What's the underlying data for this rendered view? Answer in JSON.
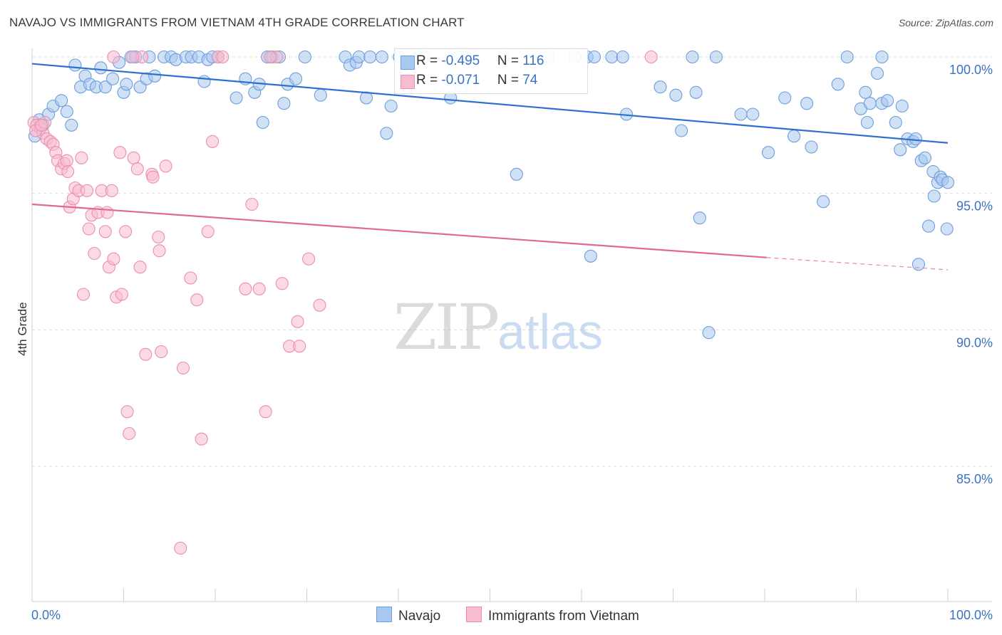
{
  "title": "NAVAJO VS IMMIGRANTS FROM VIETNAM 4TH GRADE CORRELATION CHART",
  "source": "Source: ZipAtlas.com",
  "watermark": {
    "zip": "ZIP",
    "atlas": "atlas"
  },
  "stats": [
    {
      "r_label": "R = ",
      "r_value": "-0.495",
      "n_label": "N = ",
      "n_value": "116",
      "color": "#a9c8ef",
      "border": "#6c9fdd"
    },
    {
      "r_label": "R = ",
      "r_value": "-0.071",
      "n_label": "N = ",
      "n_value": "74",
      "color": "#f7bcd0",
      "border": "#ea8fb0"
    }
  ],
  "legend": [
    {
      "label": "Navajo",
      "color": "#a9c8ef",
      "border": "#6c9fdd"
    },
    {
      "label": "Immigrants from Vietnam",
      "color": "#f7bcd0",
      "border": "#ea8fb0"
    }
  ],
  "chart_data": {
    "type": "scatter",
    "title": "NAVAJO VS IMMIGRANTS FROM VIETNAM 4TH GRADE CORRELATION CHART",
    "xlabel": "",
    "ylabel": "4th Grade",
    "xlim": [
      0,
      100
    ],
    "ylim": [
      80.5,
      100.8
    ],
    "x_tick_labels": [
      {
        "value": 0,
        "label": "0.0%"
      },
      {
        "value": 100,
        "label": "100.0%"
      }
    ],
    "y_tick_labels": [
      {
        "value": 100,
        "label": "100.0%"
      },
      {
        "value": 95,
        "label": "95.0%"
      },
      {
        "value": 90,
        "label": "90.0%"
      },
      {
        "value": 85,
        "label": "85.0%"
      }
    ],
    "grid": true,
    "legend_position": "bottom",
    "series": [
      {
        "name": "Navajo",
        "color": "#6c9fdd",
        "fill": "#a9c8ef",
        "trend": {
          "x": [
            0,
            100
          ],
          "y": [
            99.75,
            96.85
          ],
          "color": "#2f6fcf"
        },
        "points": [
          [
            0.3,
            97.1
          ],
          [
            0.8,
            97.7
          ],
          [
            1.2,
            97.5
          ],
          [
            1.8,
            97.9
          ],
          [
            2.3,
            98.2
          ],
          [
            3.2,
            98.4
          ],
          [
            3.8,
            98.0
          ],
          [
            4.3,
            97.5
          ],
          [
            4.7,
            99.7
          ],
          [
            5.3,
            98.9
          ],
          [
            5.8,
            99.3
          ],
          [
            6.3,
            99.0
          ],
          [
            7.0,
            98.9
          ],
          [
            7.5,
            99.6
          ],
          [
            8.0,
            98.9
          ],
          [
            8.8,
            99.2
          ],
          [
            9.5,
            99.8
          ],
          [
            10.0,
            98.7
          ],
          [
            10.3,
            99.0
          ],
          [
            10.8,
            100.0
          ],
          [
            11.3,
            100.0
          ],
          [
            11.8,
            98.9
          ],
          [
            12.5,
            99.2
          ],
          [
            12.8,
            100.0
          ],
          [
            13.4,
            99.3
          ],
          [
            14.4,
            100.0
          ],
          [
            15.2,
            100.0
          ],
          [
            15.7,
            99.9
          ],
          [
            16.8,
            100.0
          ],
          [
            17.4,
            100.0
          ],
          [
            18.2,
            100.0
          ],
          [
            18.8,
            99.1
          ],
          [
            19.2,
            99.9
          ],
          [
            19.7,
            100.0
          ],
          [
            20.3,
            100.0
          ],
          [
            22.3,
            98.5
          ],
          [
            23.3,
            99.2
          ],
          [
            24.3,
            98.7
          ],
          [
            24.8,
            99.0
          ],
          [
            25.2,
            97.6
          ],
          [
            25.7,
            100.0
          ],
          [
            26.2,
            100.0
          ],
          [
            27.0,
            100.0
          ],
          [
            27.5,
            98.3
          ],
          [
            27.9,
            99.0
          ],
          [
            28.8,
            99.2
          ],
          [
            29.8,
            100.0
          ],
          [
            31.5,
            98.6
          ],
          [
            34.2,
            100.0
          ],
          [
            34.7,
            99.7
          ],
          [
            35.4,
            99.8
          ],
          [
            35.7,
            100.0
          ],
          [
            36.5,
            98.5
          ],
          [
            36.9,
            100.0
          ],
          [
            38.2,
            100.0
          ],
          [
            38.7,
            97.2
          ],
          [
            39.2,
            98.2
          ],
          [
            40.1,
            100.0
          ],
          [
            42.8,
            100.0
          ],
          [
            45.7,
            98.5
          ],
          [
            46.5,
            100.0
          ],
          [
            46.9,
            98.9
          ],
          [
            47.4,
            100.0
          ],
          [
            51.4,
            100.0
          ],
          [
            52.9,
            95.7
          ],
          [
            56.4,
            100.0
          ],
          [
            59.3,
            100.0
          ],
          [
            60.6,
            100.0
          ],
          [
            61.0,
            92.7
          ],
          [
            61.4,
            100.0
          ],
          [
            63.3,
            100.0
          ],
          [
            64.5,
            100.0
          ],
          [
            64.9,
            97.9
          ],
          [
            68.6,
            98.9
          ],
          [
            70.3,
            98.6
          ],
          [
            70.9,
            97.3
          ],
          [
            72.1,
            100.0
          ],
          [
            72.5,
            98.7
          ],
          [
            72.9,
            94.1
          ],
          [
            74.7,
            100.0
          ],
          [
            73.9,
            89.9
          ],
          [
            77.4,
            97.9
          ],
          [
            78.7,
            97.9
          ],
          [
            80.4,
            96.5
          ],
          [
            82.2,
            98.5
          ],
          [
            83.2,
            97.1
          ],
          [
            84.6,
            98.3
          ],
          [
            85.1,
            96.7
          ],
          [
            86.4,
            94.7
          ],
          [
            89.0,
            100.0
          ],
          [
            90.5,
            98.1
          ],
          [
            91.0,
            98.7
          ],
          [
            91.2,
            97.6
          ],
          [
            91.5,
            98.3
          ],
          [
            92.3,
            99.4
          ],
          [
            92.8,
            98.3
          ],
          [
            93.4,
            98.4
          ],
          [
            92.8,
            100.0
          ],
          [
            94.3,
            97.6
          ],
          [
            94.8,
            96.6
          ],
          [
            95.0,
            98.2
          ],
          [
            95.6,
            97.0
          ],
          [
            96.2,
            96.9
          ],
          [
            96.5,
            97.0
          ],
          [
            96.8,
            92.4
          ],
          [
            97.1,
            96.2
          ],
          [
            97.5,
            96.3
          ],
          [
            97.9,
            93.8
          ],
          [
            98.4,
            95.8
          ],
          [
            98.5,
            94.9
          ],
          [
            98.9,
            95.4
          ],
          [
            99.2,
            95.6
          ],
          [
            99.4,
            95.5
          ],
          [
            99.9,
            93.7
          ],
          [
            100.0,
            95.4
          ],
          [
            88.0,
            99.0
          ]
        ]
      },
      {
        "name": "Immigrants from Vietnam",
        "color": "#ea8fb0",
        "fill": "#f7bcd0",
        "trend": {
          "x": [
            0,
            80.2
          ],
          "y": [
            94.6,
            92.65
          ],
          "color": "#e06a94"
        },
        "trend_dashed": {
          "x": [
            80.2,
            100
          ],
          "y": [
            92.65,
            92.2
          ]
        },
        "points": [
          [
            0.2,
            97.6
          ],
          [
            0.5,
            97.5
          ],
          [
            0.9,
            97.4
          ],
          [
            1.2,
            97.2
          ],
          [
            1.4,
            97.6
          ],
          [
            1.6,
            97.0
          ],
          [
            2.0,
            96.9
          ],
          [
            2.3,
            96.8
          ],
          [
            2.6,
            96.5
          ],
          [
            2.8,
            96.2
          ],
          [
            3.2,
            95.9
          ],
          [
            3.5,
            96.1
          ],
          [
            3.8,
            96.2
          ],
          [
            4.1,
            94.5
          ],
          [
            4.5,
            94.8
          ],
          [
            4.7,
            95.2
          ],
          [
            5.1,
            95.1
          ],
          [
            5.4,
            96.3
          ],
          [
            5.6,
            91.3
          ],
          [
            6.0,
            95.1
          ],
          [
            6.2,
            93.7
          ],
          [
            6.5,
            94.2
          ],
          [
            6.8,
            92.8
          ],
          [
            7.2,
            94.3
          ],
          [
            7.6,
            95.1
          ],
          [
            8.0,
            93.6
          ],
          [
            8.2,
            94.3
          ],
          [
            8.4,
            92.3
          ],
          [
            8.7,
            95.1
          ],
          [
            8.9,
            92.6
          ],
          [
            9.2,
            91.2
          ],
          [
            9.6,
            96.5
          ],
          [
            9.8,
            91.3
          ],
          [
            10.2,
            93.6
          ],
          [
            10.4,
            87.0
          ],
          [
            10.6,
            86.2
          ],
          [
            11.1,
            96.3
          ],
          [
            11.5,
            95.9
          ],
          [
            11.8,
            92.3
          ],
          [
            12.0,
            100.0
          ],
          [
            12.4,
            89.1
          ],
          [
            13.1,
            95.7
          ],
          [
            13.2,
            95.6
          ],
          [
            13.8,
            93.4
          ],
          [
            13.9,
            92.9
          ],
          [
            14.1,
            89.2
          ],
          [
            14.6,
            96.0
          ],
          [
            16.2,
            82.0
          ],
          [
            16.5,
            88.6
          ],
          [
            17.3,
            91.9
          ],
          [
            18.0,
            91.1
          ],
          [
            18.5,
            86.0
          ],
          [
            19.2,
            93.6
          ],
          [
            19.7,
            96.9
          ],
          [
            20.3,
            100.0
          ],
          [
            20.8,
            100.0
          ],
          [
            23.3,
            91.5
          ],
          [
            24.0,
            94.6
          ],
          [
            24.8,
            91.5
          ],
          [
            25.5,
            87.0
          ],
          [
            26.7,
            100.0
          ],
          [
            27.3,
            91.7
          ],
          [
            28.1,
            89.4
          ],
          [
            29.0,
            90.3
          ],
          [
            29.2,
            89.4
          ],
          [
            30.2,
            92.6
          ],
          [
            31.4,
            90.9
          ],
          [
            8.9,
            100.0
          ],
          [
            11.0,
            100.0
          ],
          [
            26.0,
            100.0
          ],
          [
            67.6,
            100.0
          ],
          [
            0.4,
            97.3
          ],
          [
            1.0,
            97.5
          ],
          [
            3.9,
            95.8
          ]
        ]
      }
    ]
  }
}
